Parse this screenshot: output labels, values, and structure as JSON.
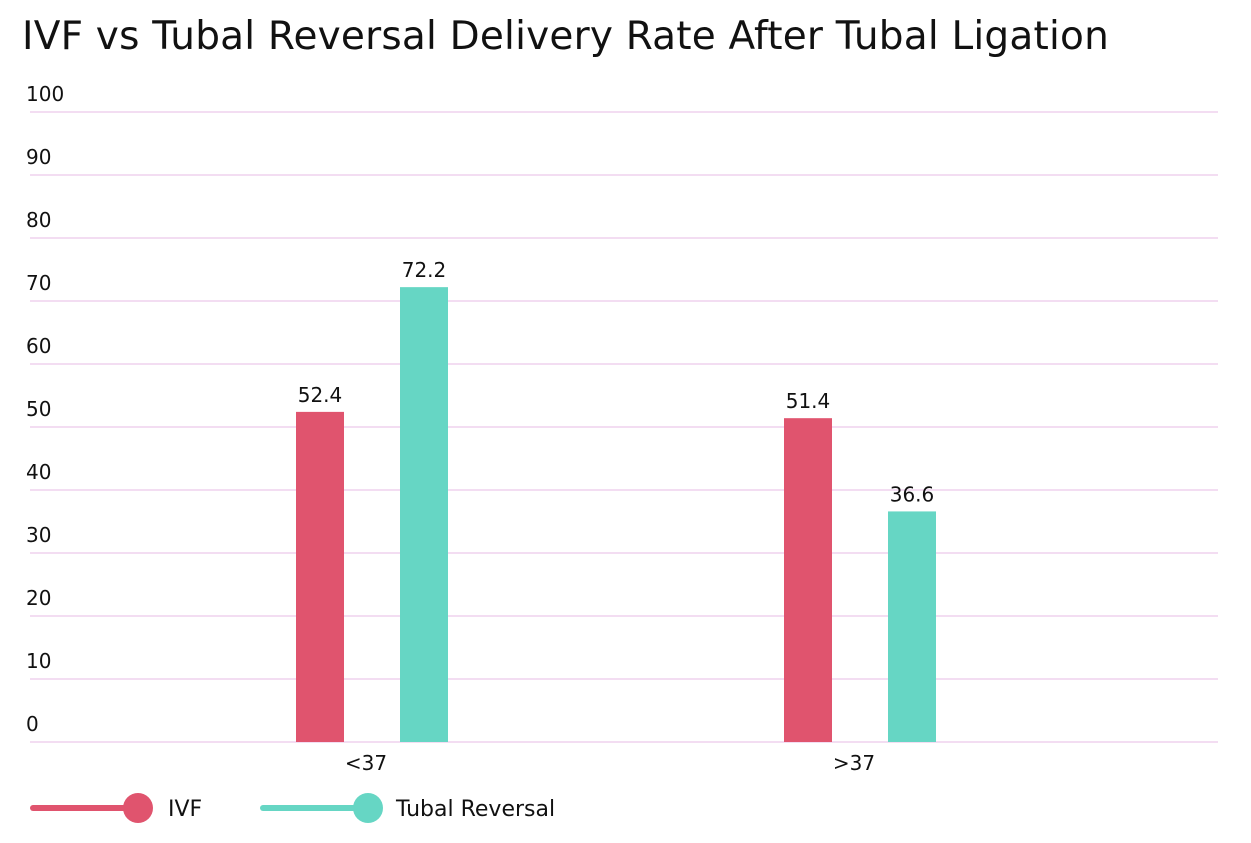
{
  "chart_data": {
    "type": "bar",
    "title": "IVF vs Tubal Reversal Delivery Rate After Tubal Ligation",
    "categories": [
      "<37",
      ">37"
    ],
    "series": [
      {
        "name": "IVF",
        "color": "#E0546E",
        "values": [
          52.4,
          51.4
        ]
      },
      {
        "name": "Tubal Reversal",
        "color": "#66D6C4",
        "values": [
          72.2,
          36.6
        ]
      }
    ],
    "ylim": [
      0,
      100
    ],
    "yticks": [
      0,
      10,
      20,
      30,
      40,
      50,
      60,
      70,
      80,
      90,
      100
    ],
    "grid": true,
    "grid_color": "#F3DDF2",
    "xlabel": "",
    "ylabel": "",
    "legend_position": "bottom-left"
  }
}
